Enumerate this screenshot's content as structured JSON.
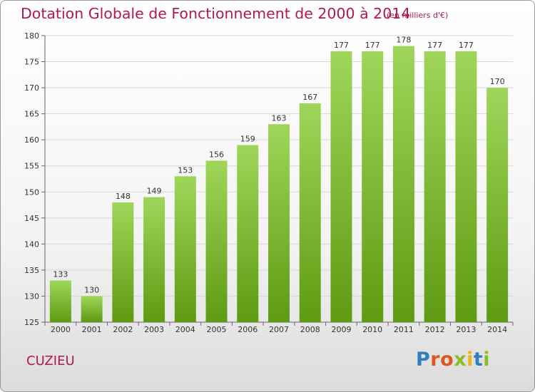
{
  "header": {
    "title": "Dotation Globale de Fonctionnement de 2000 à 2014",
    "unit": "(en milliers d'€)"
  },
  "footer": {
    "commune": "CUZIEU",
    "logo": "Proxiti"
  },
  "colors": {
    "title": "#b3184f",
    "bar_top": "#9fd65a",
    "bar_bottom": "#5e9a12",
    "grid": "#d8d8d8"
  },
  "chart_data": {
    "type": "bar",
    "title": "Dotation Globale de Fonctionnement de 2000 à 2014",
    "xlabel": "",
    "ylabel": "",
    "ylim": [
      125,
      180
    ],
    "yticks": [
      125,
      130,
      135,
      140,
      145,
      150,
      155,
      160,
      165,
      170,
      175,
      180
    ],
    "grid": true,
    "categories": [
      "2000",
      "2001",
      "2002",
      "2003",
      "2004",
      "2005",
      "2006",
      "2007",
      "2008",
      "2009",
      "2010",
      "2011",
      "2012",
      "2013",
      "2014"
    ],
    "values": [
      133,
      130,
      148,
      149,
      153,
      156,
      159,
      163,
      167,
      177,
      177,
      178,
      177,
      177,
      170
    ]
  }
}
